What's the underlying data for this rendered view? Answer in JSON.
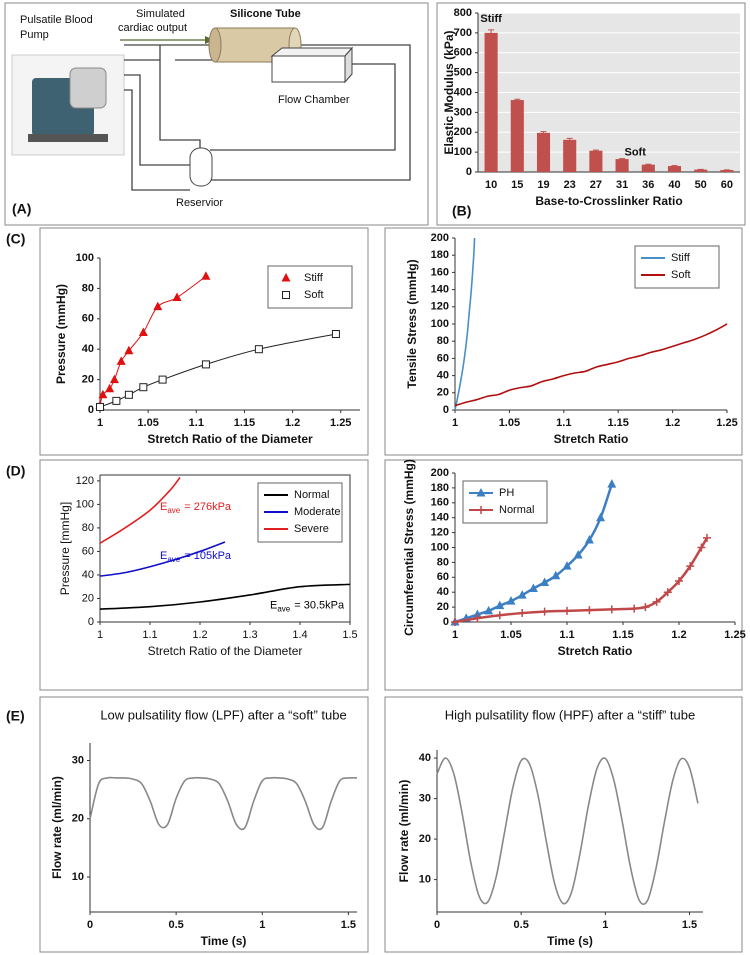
{
  "panel_labels": [
    "(A)",
    "(B)",
    "(C)",
    "(D)",
    "(E)"
  ],
  "diagram": {
    "pump_label": [
      "Pulsatile Blood",
      "Pump"
    ],
    "output_label": [
      "Simulated",
      "cardiac output"
    ],
    "tube_label": "Silicone Tube",
    "chamber_label": "Flow Chamber",
    "reservoir_label": "Reservior"
  },
  "chart_data": [
    {
      "type": "bar",
      "xlabel": "Base-to-Crosslinker Ratio",
      "ylabel": "Elastic Modulus (kPa)",
      "categories": [
        "10",
        "15",
        "19",
        "23",
        "27",
        "31",
        "36",
        "40",
        "50",
        "60"
      ],
      "values": [
        700,
        362,
        197,
        162,
        107,
        65,
        37,
        30,
        12,
        10
      ],
      "errors": [
        15,
        4,
        6,
        7,
        3,
        2,
        2,
        2,
        1,
        1
      ],
      "color": "#c0504d",
      "ylim": [
        0,
        800
      ],
      "yticks": [
        0,
        100,
        200,
        300,
        400,
        500,
        600,
        700,
        800
      ],
      "grid": true,
      "annotations": [
        "Stiff",
        "Soft"
      ]
    },
    {
      "type": "scatter",
      "xlabel": "Stretch Ratio of the Diameter",
      "ylabel": "Pressure (mmHg)",
      "xlim": [
        1,
        1.27
      ],
      "xticks": [
        1,
        1.05,
        1.1,
        1.15,
        1.2,
        1.25
      ],
      "ylim": [
        0,
        100
      ],
      "yticks": [
        0,
        20,
        40,
        60,
        80,
        100
      ],
      "legend": "upper right",
      "fit_line": true,
      "series": [
        {
          "name": "Stiff",
          "color": "#e01010",
          "marker": "triangle",
          "x": [
            1.0,
            1.003,
            1.01,
            1.015,
            1.022,
            1.03,
            1.045,
            1.06,
            1.08,
            1.11
          ],
          "values": [
            3,
            10,
            14,
            20,
            32,
            39,
            51,
            68,
            74,
            88
          ]
        },
        {
          "name": "Soft",
          "color": "#222222",
          "marker": "square-open",
          "x": [
            1.0,
            1.017,
            1.03,
            1.045,
            1.065,
            1.11,
            1.165,
            1.245
          ],
          "values": [
            2,
            6,
            10,
            15,
            20,
            30,
            40,
            50
          ]
        }
      ]
    },
    {
      "type": "line",
      "xlabel": "Stretch Ratio",
      "ylabel": "Tensile Stress (mmHg)",
      "xlim": [
        1,
        1.25
      ],
      "xticks": [
        1,
        1.05,
        1.1,
        1.15,
        1.2,
        1.25
      ],
      "ylim": [
        0,
        200
      ],
      "yticks": [
        0,
        20,
        40,
        60,
        80,
        100,
        120,
        140,
        160,
        180,
        200
      ],
      "legend": "upper right",
      "series": [
        {
          "name": "Stiff",
          "color": "#4a90c8",
          "x": [
            1.0,
            1.004,
            1.008,
            1.011,
            1.013,
            1.015,
            1.017,
            1.018
          ],
          "values": [
            0,
            25,
            55,
            85,
            112,
            140,
            175,
            200
          ]
        },
        {
          "name": "Soft",
          "color": "#b01010",
          "x": [
            1.0,
            1.01,
            1.02,
            1.03,
            1.04,
            1.05,
            1.06,
            1.07,
            1.08,
            1.09,
            1.1,
            1.11,
            1.12,
            1.13,
            1.14,
            1.15,
            1.16,
            1.17,
            1.18,
            1.19,
            1.2,
            1.21,
            1.22,
            1.23,
            1.24,
            1.25
          ],
          "values": [
            5,
            9,
            12,
            16,
            18,
            23,
            26,
            28,
            33,
            36,
            40,
            43,
            45,
            50,
            53,
            56,
            60,
            63,
            67,
            70,
            74,
            78,
            82,
            87,
            93,
            100
          ]
        }
      ]
    },
    {
      "type": "line",
      "xlabel": "Stretch Ratio of the Diameter",
      "ylabel": "Pressure [mmHg]",
      "xlim": [
        1,
        1.5
      ],
      "xticks": [
        1,
        1.1,
        1.2,
        1.3,
        1.4,
        1.5
      ],
      "ylim": [
        0,
        125
      ],
      "yticks": [
        0,
        20,
        40,
        60,
        80,
        100,
        120
      ],
      "legend": "upper right",
      "series": [
        {
          "name": "Normal",
          "color": "#000000",
          "x": [
            1.0,
            1.1,
            1.2,
            1.3,
            1.4,
            1.5
          ],
          "values": [
            11,
            13,
            17,
            23,
            30,
            32
          ]
        },
        {
          "name": "Moderate",
          "color": "#1010c8",
          "x": [
            1.0,
            1.05,
            1.1,
            1.15,
            1.2,
            1.25
          ],
          "values": [
            39,
            42,
            47,
            53,
            60,
            68
          ]
        },
        {
          "name": "Severe",
          "color": "#e02020",
          "x": [
            1.0,
            1.05,
            1.1,
            1.14,
            1.16
          ],
          "values": [
            67,
            80,
            95,
            112,
            123
          ]
        }
      ],
      "annotations": [
        {
          "text": "E",
          "sub": "ave",
          "rest": "= 276kPa",
          "color": "#e02020"
        },
        {
          "text": "E",
          "sub": "ave",
          "rest": "= 105kPa",
          "color": "#1010c8"
        },
        {
          "text": "E",
          "sub": "ave",
          "rest": "= 30.5kPa",
          "color": "#000000"
        }
      ]
    },
    {
      "type": "line",
      "xlabel": "Stretch Ratio",
      "ylabel": "Circumferential Stress (mmHg)",
      "xlim": [
        1,
        1.25
      ],
      "xticks": [
        1,
        1.05,
        1.1,
        1.15,
        1.2,
        1.25
      ],
      "ylim": [
        0,
        200
      ],
      "yticks": [
        0,
        20,
        40,
        60,
        80,
        100,
        120,
        140,
        160,
        180,
        200
      ],
      "legend": "upper left",
      "series": [
        {
          "name": "PH",
          "color": "#3d7fc4",
          "marker": "triangle",
          "x": [
            1.0,
            1.01,
            1.02,
            1.03,
            1.04,
            1.05,
            1.06,
            1.07,
            1.08,
            1.09,
            1.1,
            1.11,
            1.12,
            1.13,
            1.14
          ],
          "values": [
            0,
            5,
            10,
            15,
            22,
            28,
            36,
            45,
            53,
            62,
            75,
            90,
            110,
            140,
            185
          ]
        },
        {
          "name": "Normal",
          "color": "#c04848",
          "marker": "plus",
          "x": [
            1.0,
            1.02,
            1.04,
            1.06,
            1.08,
            1.1,
            1.12,
            1.14,
            1.16,
            1.17,
            1.18,
            1.19,
            1.2,
            1.21,
            1.22,
            1.225
          ],
          "values": [
            0,
            5,
            9,
            12,
            14,
            15,
            16,
            17,
            18,
            20,
            27,
            40,
            55,
            75,
            100,
            113
          ]
        }
      ]
    },
    {
      "type": "line",
      "title": "Low pulsatility flow (LPF) after a “soft” tube",
      "xlabel": "Time (s)",
      "ylabel": "Flow rate (ml/min)",
      "xlim": [
        0,
        1.55
      ],
      "xticks": [
        0,
        0.5,
        1,
        1.5
      ],
      "ylim": [
        4,
        33
      ],
      "yticks": [
        10,
        20,
        30
      ],
      "series": [
        {
          "color": "#888888",
          "x": [
            0,
            0.05,
            0.1,
            0.15,
            0.2,
            0.25,
            0.3,
            0.35,
            0.4,
            0.45,
            0.5,
            0.55,
            0.6,
            0.65,
            0.7,
            0.75,
            0.8,
            0.85,
            0.9,
            0.95,
            1.0,
            1.05,
            1.1,
            1.15,
            1.2,
            1.25,
            1.3,
            1.35,
            1.4,
            1.45,
            1.5,
            1.55
          ],
          "values": [
            20,
            26,
            27,
            27,
            27,
            26.8,
            26,
            23,
            19,
            19,
            23.5,
            26.5,
            27,
            27,
            26.8,
            26,
            23,
            19,
            18.5,
            23,
            26.5,
            27,
            27,
            26.8,
            26,
            23,
            19,
            18.5,
            23,
            26.5,
            27,
            27
          ]
        }
      ]
    },
    {
      "type": "line",
      "title": "High pulsatility flow (HPF) after a “stiff” tube",
      "xlabel": "Time (s)",
      "ylabel": "Flow rate (ml/min)",
      "xlim": [
        0,
        1.58
      ],
      "xticks": [
        0,
        0.5,
        1,
        1.5
      ],
      "ylim": [
        2,
        42
      ],
      "yticks": [
        10,
        20,
        30,
        40
      ],
      "series": [
        {
          "color": "#888888",
          "x": [
            0,
            0.05,
            0.1,
            0.15,
            0.2,
            0.25,
            0.3,
            0.35,
            0.4,
            0.45,
            0.5,
            0.55,
            0.6,
            0.65,
            0.7,
            0.75,
            0.8,
            0.85,
            0.9,
            0.95,
            1.0,
            1.05,
            1.1,
            1.15,
            1.2,
            1.25,
            1.3,
            1.35,
            1.4,
            1.45,
            1.5,
            1.55
          ],
          "values": [
            36.1,
            40,
            36.1,
            26.2,
            14.4,
            5.9,
            4.4,
            10.4,
            21.4,
            32.6,
            39.4,
            38.5,
            30.8,
            19.3,
            8.8,
            4.1,
            7.0,
            16.6,
            28.4,
            37.4,
            39.9,
            34.6,
            24.4,
            12.9,
            5.0,
            4.8,
            12.6,
            24.0,
            34.4,
            39.8,
            37.6,
            28.8
          ]
        }
      ]
    }
  ]
}
